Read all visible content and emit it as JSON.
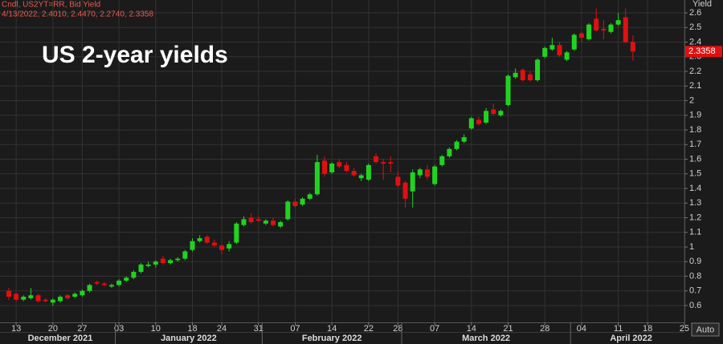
{
  "chart_data": {
    "type": "candlestick",
    "title": "US 2-year yields",
    "header": [
      "Cndl, US2YT=RR, Bid Yield",
      "4/13/2022, 2.4010, 2.4470, 2.2740, 2.3358"
    ],
    "y_label": "Yield",
    "button": "Auto",
    "months": [
      "December 2021",
      "January 2022",
      "February 2022",
      "March 2022",
      "April 2022"
    ],
    "categories": [
      null,
      "13",
      null,
      null,
      null,
      null,
      "20",
      null,
      null,
      null,
      "27",
      null,
      null,
      null,
      null,
      "03",
      null,
      null,
      null,
      null,
      "10",
      null,
      null,
      null,
      null,
      "18",
      null,
      null,
      null,
      "24",
      null,
      null,
      null,
      null,
      "31",
      null,
      null,
      null,
      null,
      "07",
      null,
      null,
      null,
      null,
      "14",
      null,
      null,
      null,
      null,
      "22",
      null,
      null,
      null,
      "28",
      null,
      null,
      null,
      null,
      "07",
      null,
      null,
      null,
      null,
      "14",
      null,
      null,
      null,
      null,
      "21",
      null,
      null,
      null,
      null,
      "28",
      null,
      null,
      null,
      null,
      "04",
      null,
      null,
      null,
      null,
      "11",
      null,
      null,
      null,
      "18",
      null,
      null,
      null,
      null,
      "25"
    ],
    "open": [
      0.7,
      0.68,
      0.64,
      0.65,
      0.67,
      0.64,
      0.62,
      0.63,
      0.67,
      0.66,
      0.67,
      0.7,
      0.76,
      0.75,
      0.73,
      0.74,
      0.77,
      0.79,
      0.83,
      0.87,
      0.88,
      0.92,
      0.89,
      0.91,
      0.92,
      0.98,
      1.04,
      1.07,
      1.03,
      1.01,
      0.99,
      1.03,
      1.15,
      1.2,
      1.19,
      1.16,
      1.18,
      1.14,
      1.19,
      1.31,
      1.29,
      1.33,
      1.36,
      1.59,
      1.51,
      1.58,
      1.56,
      1.52,
      1.47,
      1.46,
      1.62,
      1.58,
      1.58,
      1.48,
      1.44,
      1.38,
      1.49,
      1.53,
      1.43,
      1.56,
      1.62,
      1.67,
      1.72,
      1.81,
      1.87,
      1.85,
      1.94,
      1.9,
      1.97,
      2.16,
      2.21,
      2.18,
      2.14,
      2.3,
      2.35,
      2.38,
      2.28,
      2.35,
      2.46,
      2.42,
      2.56,
      2.49,
      2.47,
      2.52,
      2.57,
      2.401,
      null,
      null,
      null,
      null,
      null,
      null,
      null
    ],
    "high": [
      0.72,
      0.69,
      0.67,
      0.72,
      0.68,
      0.65,
      0.65,
      0.67,
      0.68,
      0.69,
      0.71,
      0.75,
      0.77,
      0.76,
      0.75,
      0.78,
      0.8,
      0.84,
      0.89,
      0.9,
      0.91,
      0.94,
      0.92,
      0.93,
      0.98,
      1.06,
      1.08,
      1.08,
      1.05,
      1.02,
      1.04,
      1.17,
      1.21,
      1.23,
      1.21,
      1.19,
      1.2,
      1.18,
      1.32,
      1.33,
      1.34,
      1.37,
      1.63,
      1.62,
      1.58,
      1.6,
      1.58,
      1.54,
      1.5,
      1.57,
      1.64,
      1.6,
      1.62,
      1.52,
      1.45,
      1.53,
      1.54,
      1.56,
      1.56,
      1.63,
      1.68,
      1.73,
      1.77,
      1.89,
      1.89,
      1.95,
      1.98,
      1.94,
      2.18,
      2.22,
      2.22,
      2.2,
      2.29,
      2.37,
      2.43,
      2.4,
      2.34,
      2.46,
      2.47,
      2.53,
      2.63,
      2.55,
      2.53,
      2.6,
      2.63,
      2.447,
      null,
      null,
      null,
      null,
      null,
      null,
      null
    ],
    "low": [
      0.64,
      0.63,
      0.63,
      0.64,
      0.62,
      0.62,
      0.6,
      0.62,
      0.64,
      0.65,
      0.66,
      0.69,
      0.74,
      0.73,
      0.72,
      0.73,
      0.76,
      0.78,
      0.82,
      0.86,
      0.86,
      0.88,
      0.88,
      0.9,
      0.91,
      0.97,
      1.03,
      1.02,
      1.0,
      0.95,
      0.97,
      1.02,
      1.14,
      1.16,
      1.17,
      1.15,
      1.14,
      1.13,
      1.18,
      1.27,
      1.28,
      1.32,
      1.35,
      1.48,
      1.5,
      1.54,
      1.51,
      1.48,
      1.45,
      1.45,
      1.57,
      1.46,
      1.51,
      1.41,
      1.27,
      1.27,
      1.47,
      1.46,
      1.42,
      1.55,
      1.61,
      1.66,
      1.71,
      1.8,
      1.83,
      1.84,
      1.9,
      1.89,
      1.96,
      2.15,
      2.13,
      2.13,
      2.13,
      2.29,
      2.34,
      2.3,
      2.27,
      2.34,
      2.4,
      2.41,
      2.47,
      2.42,
      2.46,
      2.51,
      2.39,
      2.274,
      null,
      null,
      null,
      null,
      null,
      null,
      null
    ],
    "close": [
      0.66,
      0.64,
      0.66,
      0.67,
      0.63,
      0.63,
      0.64,
      0.66,
      0.65,
      0.68,
      0.7,
      0.74,
      0.75,
      0.74,
      0.74,
      0.77,
      0.79,
      0.83,
      0.88,
      0.88,
      0.9,
      0.89,
      0.91,
      0.92,
      0.97,
      1.04,
      1.06,
      1.03,
      1.01,
      0.98,
      1.02,
      1.16,
      1.19,
      1.17,
      1.18,
      1.18,
      1.15,
      1.17,
      1.31,
      1.28,
      1.33,
      1.36,
      1.58,
      1.5,
      1.57,
      1.55,
      1.52,
      1.49,
      1.49,
      1.56,
      1.58,
      1.57,
      1.57,
      1.42,
      1.33,
      1.51,
      1.53,
      1.48,
      1.55,
      1.62,
      1.67,
      1.72,
      1.75,
      1.88,
      1.84,
      1.93,
      1.91,
      1.93,
      2.17,
      2.19,
      2.14,
      2.14,
      2.28,
      2.36,
      2.38,
      2.31,
      2.33,
      2.45,
      2.43,
      2.52,
      2.48,
      2.48,
      2.52,
      2.55,
      2.4,
      2.3358,
      null,
      null,
      null,
      null,
      null,
      null,
      null
    ],
    "up_color": "#21d321",
    "down_color": "#e01010",
    "ylim": [
      0.485,
      2.688
    ],
    "yticks": [
      0.6,
      0.7,
      0.8,
      0.9,
      1,
      1.1,
      1.2,
      1.3,
      1.4,
      1.5,
      1.6,
      1.7,
      1.8,
      1.9,
      2,
      2.1,
      2.2,
      2.3,
      2.4,
      2.5,
      2.6
    ],
    "grid": true
  }
}
